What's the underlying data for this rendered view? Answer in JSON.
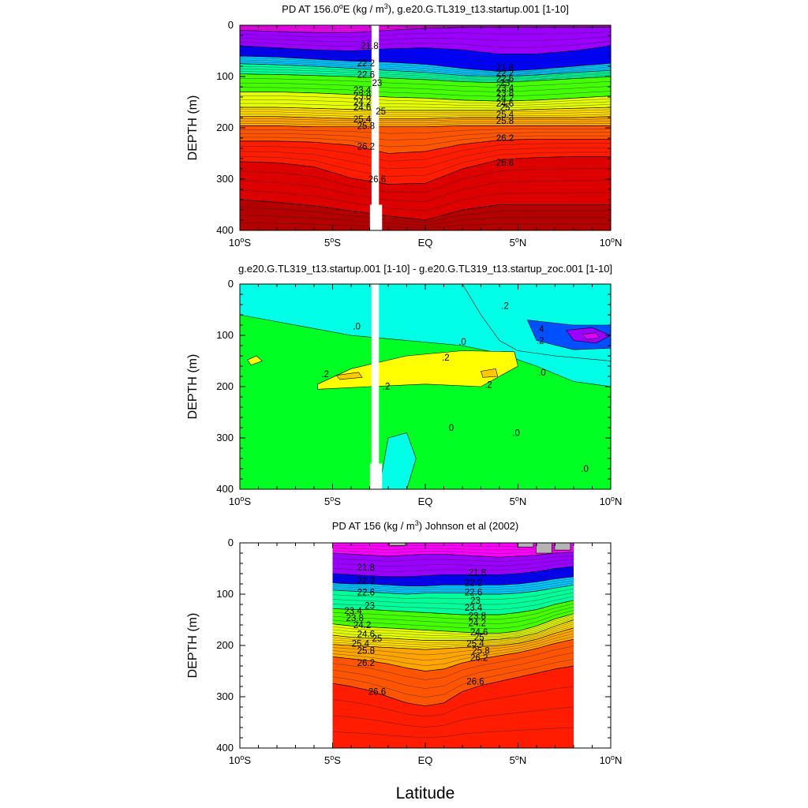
{
  "figure": {
    "xlabel": "Latitude"
  },
  "chart_data": [
    {
      "type": "contour",
      "title_pre": "PD AT 156.0",
      "title_sup1": "o",
      "title_mid": "E (kg / m",
      "title_sup2": "3",
      "title_post": "), g.e20.G.TL319_t13.startup.001 [1-10]",
      "xlabel": "",
      "ylabel": "DEPTH (m)",
      "xlim": [
        -10,
        10
      ],
      "ylim": [
        400,
        0
      ],
      "x_ticks": [
        {
          "v": -10,
          "deg": "10",
          "hemi": "S"
        },
        {
          "v": -5,
          "deg": "5",
          "hemi": "S"
        },
        {
          "v": 0,
          "deg": "",
          "hemi": "EQ"
        },
        {
          "v": 5,
          "deg": "5",
          "hemi": "N"
        },
        {
          "v": 10,
          "deg": "10",
          "hemi": "N"
        }
      ],
      "y_ticks": [
        0,
        100,
        200,
        300,
        400
      ],
      "data_lat_range": [
        -10,
        10
      ],
      "missing_band_lat": [
        -2.9,
        -2.5
      ],
      "levels": [
        21.6,
        21.8,
        22.0,
        22.2,
        22.4,
        22.6,
        22.8,
        23.0,
        23.2,
        23.4,
        23.6,
        23.8,
        24.0,
        24.2,
        24.4,
        24.6,
        24.8,
        25.0,
        25.2,
        25.4,
        25.6,
        25.8,
        26.0,
        26.2,
        26.4,
        26.6,
        26.8
      ],
      "fill_colors": [
        "#ff00ff",
        "#d400ff",
        "#9b00ff",
        "#5c00ff",
        "#0000ff",
        "#0050ff",
        "#0090ff",
        "#00c8ff",
        "#00ffd8",
        "#00ff9a",
        "#00ff44",
        "#44ff00",
        "#a0ff00",
        "#e6ff00",
        "#ffff00",
        "#ffdc00",
        "#ffc000",
        "#ffa500",
        "#ff8c00",
        "#ff7000",
        "#ff5500",
        "#ff3a00",
        "#ff1c00",
        "#f00000",
        "#dc0000",
        "#c80000",
        "#b40000"
      ],
      "profile_lat": [
        -10,
        -8,
        -6,
        -4,
        -2,
        0,
        2,
        4,
        6,
        8,
        10
      ],
      "profile_depth": [
        [
          10,
          12,
          14,
          14,
          10,
          6,
          4,
          4,
          4,
          4,
          4
        ],
        [
          40,
          44,
          48,
          50,
          46,
          44,
          48,
          56,
          56,
          50,
          40
        ],
        [
          60,
          62,
          66,
          70,
          72,
          76,
          84,
          90,
          86,
          80,
          74
        ],
        [
          75,
          77,
          80,
          84,
          88,
          92,
          98,
          100,
          97,
          92,
          88
        ],
        [
          95,
          96,
          98,
          100,
          103,
          106,
          110,
          112,
          108,
          104,
          100
        ],
        [
          130,
          130,
          132,
          135,
          140,
          142,
          146,
          148,
          146,
          142,
          138
        ],
        [
          160,
          160,
          162,
          164,
          166,
          166,
          166,
          166,
          164,
          162,
          160
        ],
        [
          178,
          178,
          180,
          182,
          182,
          182,
          180,
          180,
          180,
          180,
          178
        ],
        [
          196,
          196,
          198,
          198,
          198,
          198,
          196,
          196,
          196,
          196,
          196
        ],
        [
          226,
          226,
          228,
          234,
          250,
          246,
          232,
          224,
          222,
          222,
          222
        ],
        [
          266,
          268,
          276,
          298,
          310,
          308,
          280,
          262,
          258,
          256,
          256
        ],
        [
          340,
          345,
          352,
          362,
          372,
          380,
          360,
          350,
          350,
          350,
          350
        ]
      ],
      "contour_labels": [
        {
          "text": "21.8",
          "lat": -3.0,
          "depth": 40
        },
        {
          "text": "22.2",
          "lat": -3.2,
          "depth": 74
        },
        {
          "text": "22.6",
          "lat": -3.2,
          "depth": 96
        },
        {
          "text": "23",
          "lat": -2.6,
          "depth": 112
        },
        {
          "text": "23.4",
          "lat": -3.4,
          "depth": 126
        },
        {
          "text": "23.8",
          "lat": -3.4,
          "depth": 138
        },
        {
          "text": "24.2",
          "lat": -3.4,
          "depth": 150
        },
        {
          "text": "24.6",
          "lat": -3.4,
          "depth": 160
        },
        {
          "text": "25",
          "lat": -2.4,
          "depth": 168
        },
        {
          "text": "25.4",
          "lat": -3.4,
          "depth": 183
        },
        {
          "text": "25.8",
          "lat": -3.2,
          "depth": 196
        },
        {
          "text": "26.2",
          "lat": -3.2,
          "depth": 236
        },
        {
          "text": "26.6",
          "lat": -2.6,
          "depth": 300
        },
        {
          "text": "21.8",
          "lat": 4.3,
          "depth": 82
        },
        {
          "text": "22.2",
          "lat": 4.3,
          "depth": 93
        },
        {
          "text": "22.6",
          "lat": 4.3,
          "depth": 104
        },
        {
          "text": "23",
          "lat": 4.3,
          "depth": 112
        },
        {
          "text": "23.4",
          "lat": 4.3,
          "depth": 122
        },
        {
          "text": "23.8",
          "lat": 4.3,
          "depth": 132
        },
        {
          "text": "24.2",
          "lat": 4.3,
          "depth": 142
        },
        {
          "text": "24.6",
          "lat": 4.3,
          "depth": 152
        },
        {
          "text": "25",
          "lat": 4.3,
          "depth": 160
        },
        {
          "text": "25.4",
          "lat": 4.3,
          "depth": 174
        },
        {
          "text": "25.8",
          "lat": 4.3,
          "depth": 186
        },
        {
          "text": "26.2",
          "lat": 4.3,
          "depth": 220
        },
        {
          "text": "26.6",
          "lat": 4.3,
          "depth": 268
        }
      ]
    },
    {
      "type": "contour",
      "title": "g.e20.G.TL319_t13.startup.001 [1-10] - g.e20.G.TL319_t13.startup_zoc.001 [1-10]",
      "xlabel": "",
      "ylabel": "DEPTH (m)",
      "xlim": [
        -10,
        10
      ],
      "ylim": [
        400,
        0
      ],
      "x_ticks": [
        {
          "v": -10,
          "deg": "10",
          "hemi": "S"
        },
        {
          "v": -5,
          "deg": "5",
          "hemi": "S"
        },
        {
          "v": 0,
          "deg": "",
          "hemi": "EQ"
        },
        {
          "v": 5,
          "deg": "5",
          "hemi": "N"
        },
        {
          "v": 10,
          "deg": "10",
          "hemi": "N"
        }
      ],
      "y_ticks": [
        0,
        100,
        200,
        300,
        400
      ],
      "missing_band_lat": [
        -2.9,
        -2.5
      ],
      "levels": [
        -0.6,
        -0.4,
        -0.2,
        0.0,
        0.2,
        0.4
      ],
      "fill_colors": [
        "#9b00ff",
        "#0050ff",
        "#00a8ff",
        "#00ffe6",
        "#00ff22",
        "#ffff00",
        "#ffc800"
      ],
      "regions": [
        {
          "name": "positive-zero-to-0.2",
          "level": 0.0,
          "pts": [
            [
              -10,
              60
            ],
            [
              -7,
              80
            ],
            [
              -4,
              100
            ],
            [
              -1,
              110
            ],
            [
              2,
              120
            ],
            [
              4,
              135
            ],
            [
              6,
              160
            ],
            [
              8,
              190
            ],
            [
              10,
              200
            ],
            [
              10,
              400
            ],
            [
              -10,
              400
            ]
          ]
        },
        {
          "name": "negative-zone",
          "level": -0.2,
          "pts": [
            [
              2,
              0
            ],
            [
              10,
              0
            ],
            [
              10,
              150
            ],
            [
              7,
              140
            ],
            [
              5,
              130
            ],
            [
              4,
              110
            ],
            [
              3,
              60
            ]
          ]
        },
        {
          "name": "yellow-band",
          "level": 0.2,
          "pts": [
            [
              -5.8,
              195
            ],
            [
              -4,
              165
            ],
            [
              -1,
              140
            ],
            [
              2,
              130
            ],
            [
              4.8,
              132
            ],
            [
              5,
              160
            ],
            [
              3,
              200
            ],
            [
              0,
              195
            ],
            [
              -3,
              200
            ],
            [
              -5.8,
              205
            ]
          ]
        },
        {
          "name": "yellow-spot-left",
          "level": 0.2,
          "pts": [
            [
              -9.6,
              148
            ],
            [
              -9.1,
              140
            ],
            [
              -8.8,
              150
            ],
            [
              -9.4,
              158
            ]
          ]
        },
        {
          "name": "deep-lobe-left",
          "level": -0.2,
          "pts": [
            [
              -2,
              300
            ],
            [
              -1,
              290
            ],
            [
              -0.5,
              340
            ],
            [
              -1,
              400
            ],
            [
              -2.5,
              400
            ]
          ]
        }
      ],
      "contour_labels": [
        {
          "text": ".0",
          "lat": -3.7,
          "depth": 82
        },
        {
          "text": ".0",
          "lat": 2.0,
          "depth": 112
        },
        {
          "text": ".2",
          "lat": 4.3,
          "depth": 42
        },
        {
          "text": ".4",
          "lat": 6.2,
          "depth": 88
        },
        {
          "text": ".2",
          "lat": 6.2,
          "depth": 110
        },
        {
          "text": ".2",
          "lat": 1.1,
          "depth": 143
        },
        {
          "text": ".2",
          "lat": -5.4,
          "depth": 175
        },
        {
          "text": ".2",
          "lat": -2.1,
          "depth": 199
        },
        {
          "text": ".2",
          "lat": 3.4,
          "depth": 196
        },
        {
          "text": ".0",
          "lat": 6.3,
          "depth": 172
        },
        {
          "text": "0",
          "lat": 1.4,
          "depth": 280
        },
        {
          "text": ".0",
          "lat": 4.9,
          "depth": 290
        },
        {
          "text": ".0",
          "lat": 8.6,
          "depth": 360
        }
      ]
    },
    {
      "type": "contour",
      "title_pre": "PD AT 156 (kg / m",
      "title_sup": "3",
      "title_post": ") Johnson et al (2002)",
      "xlabel": "Latitude",
      "ylabel": "DEPTH (m)",
      "xlim": [
        -10,
        10
      ],
      "ylim": [
        400,
        0
      ],
      "x_ticks": [
        {
          "v": -10,
          "deg": "10",
          "hemi": "S"
        },
        {
          "v": -5,
          "deg": "5",
          "hemi": "S"
        },
        {
          "v": 0,
          "deg": "",
          "hemi": "EQ"
        },
        {
          "v": 5,
          "deg": "5",
          "hemi": "N"
        },
        {
          "v": 10,
          "deg": "10",
          "hemi": "N"
        }
      ],
      "y_ticks": [
        0,
        100,
        200,
        300,
        400
      ],
      "data_lat_range": [
        -5,
        8
      ],
      "levels": [
        21.6,
        21.8,
        22.0,
        22.2,
        22.4,
        22.6,
        22.8,
        23.0,
        23.2,
        23.4,
        23.6,
        23.8,
        24.0,
        24.2,
        24.4,
        24.6,
        24.8,
        25.0,
        25.2,
        25.4,
        25.6,
        25.8,
        26.0,
        26.2,
        26.4,
        26.6,
        26.8
      ],
      "fill_colors": [
        "#ff00ff",
        "#d400ff",
        "#9b00ff",
        "#5c00ff",
        "#0000ff",
        "#0050ff",
        "#0090ff",
        "#00c8ff",
        "#00ffd8",
        "#00ff9a",
        "#00ff44",
        "#44ff00",
        "#a0ff00",
        "#e6ff00",
        "#ffff00",
        "#ffdc00",
        "#ffc000",
        "#ffa500",
        "#ff8c00",
        "#ff7000",
        "#ff5500",
        "#ff3a00",
        "#ff1c00",
        "#f00000",
        "#dc0000",
        "#c80000",
        "#b40000"
      ],
      "profile_lat": [
        -5,
        -4,
        -3,
        -2,
        -1,
        0,
        1,
        2,
        3,
        4,
        5,
        6,
        7,
        8
      ],
      "profile_depth": [
        [
          20,
          22,
          24,
          26,
          24,
          22,
          22,
          24,
          26,
          28,
          26,
          24,
          20,
          18
        ],
        [
          60,
          62,
          64,
          66,
          66,
          64,
          62,
          62,
          62,
          62,
          60,
          56,
          50,
          46
        ],
        [
          78,
          80,
          80,
          82,
          84,
          84,
          82,
          82,
          82,
          82,
          80,
          76,
          70,
          66
        ],
        [
          92,
          94,
          96,
          98,
          100,
          98,
          98,
          98,
          100,
          100,
          98,
          94,
          88,
          82
        ],
        [
          128,
          130,
          130,
          132,
          134,
          136,
          138,
          140,
          140,
          140,
          136,
          130,
          120,
          112
        ],
        [
          158,
          162,
          164,
          166,
          168,
          170,
          172,
          174,
          176,
          176,
          172,
          162,
          148,
          138
        ],
        [
          180,
          184,
          186,
          186,
          188,
          190,
          190,
          190,
          190,
          188,
          184,
          176,
          162,
          150
        ],
        [
          198,
          200,
          202,
          204,
          206,
          208,
          206,
          204,
          202,
          200,
          196,
          188,
          176,
          166
        ],
        [
          222,
          226,
          230,
          236,
          244,
          250,
          246,
          234,
          226,
          220,
          214,
          206,
          196,
          188
        ],
        [
          274,
          280,
          288,
          300,
          312,
          318,
          312,
          290,
          278,
          270,
          262,
          254,
          246,
          240
        ],
        [
          400,
          400,
          400,
          400,
          400,
          400,
          400,
          400,
          400,
          400,
          400,
          400,
          400,
          400
        ],
        [
          400,
          400,
          400,
          400,
          400,
          400,
          400,
          400,
          400,
          400,
          400,
          400,
          400,
          400
        ]
      ],
      "missing_cap": [
        [
          -1.5,
          0,
          5
        ],
        [
          5.4,
          0,
          8
        ],
        [
          6.4,
          0,
          20
        ],
        [
          7.4,
          0,
          14
        ]
      ],
      "contour_labels": [
        {
          "text": "21.8",
          "lat": -3.2,
          "depth": 48
        },
        {
          "text": "22.2",
          "lat": -3.2,
          "depth": 74
        },
        {
          "text": "22.6",
          "lat": -3.2,
          "depth": 96
        },
        {
          "text": "23",
          "lat": -3.0,
          "depth": 122
        },
        {
          "text": "23.4",
          "lat": -3.9,
          "depth": 132
        },
        {
          "text": "23.8",
          "lat": -3.8,
          "depth": 146
        },
        {
          "text": "24.2",
          "lat": -3.4,
          "depth": 160
        },
        {
          "text": "24.6",
          "lat": -3.2,
          "depth": 178
        },
        {
          "text": "25",
          "lat": -2.6,
          "depth": 186
        },
        {
          "text": "25.4",
          "lat": -3.5,
          "depth": 196
        },
        {
          "text": "25.8",
          "lat": -3.2,
          "depth": 210
        },
        {
          "text": "26.2",
          "lat": -3.2,
          "depth": 234
        },
        {
          "text": "26.6",
          "lat": -2.6,
          "depth": 290
        },
        {
          "text": "21.8",
          "lat": 2.8,
          "depth": 58
        },
        {
          "text": "22.2",
          "lat": 2.6,
          "depth": 78
        },
        {
          "text": "22.6",
          "lat": 2.6,
          "depth": 96
        },
        {
          "text": "23",
          "lat": 2.7,
          "depth": 112
        },
        {
          "text": "23.4",
          "lat": 2.6,
          "depth": 126
        },
        {
          "text": "23.8",
          "lat": 2.8,
          "depth": 142
        },
        {
          "text": "24.2",
          "lat": 2.8,
          "depth": 156
        },
        {
          "text": "24.6",
          "lat": 2.9,
          "depth": 174
        },
        {
          "text": "25",
          "lat": 2.9,
          "depth": 184
        },
        {
          "text": "25.4",
          "lat": 2.7,
          "depth": 196
        },
        {
          "text": "25.8",
          "lat": 3.0,
          "depth": 210
        },
        {
          "text": "26.2",
          "lat": 2.9,
          "depth": 224
        },
        {
          "text": "26.6",
          "lat": 2.7,
          "depth": 270
        }
      ]
    }
  ]
}
